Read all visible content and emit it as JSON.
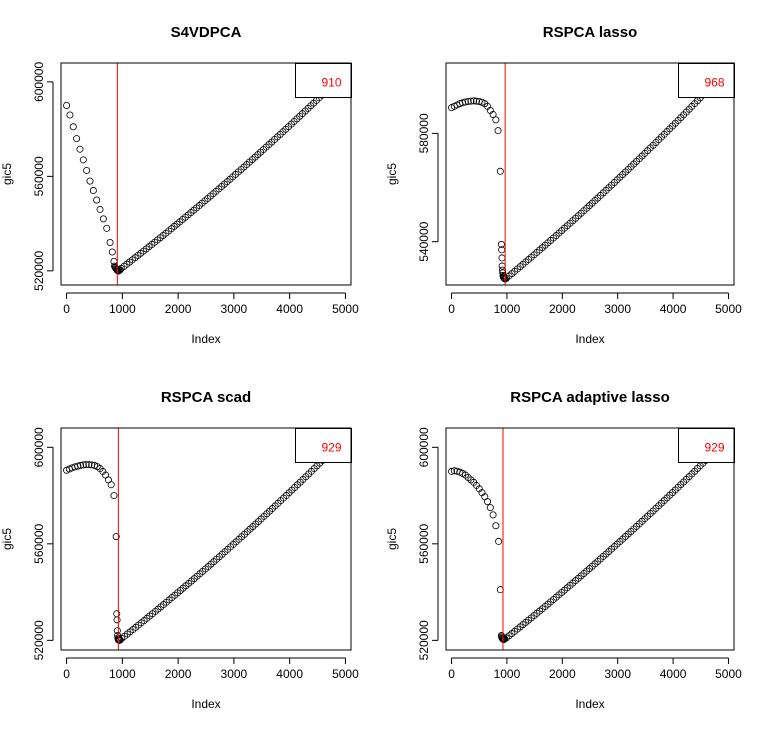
{
  "chart_data": [
    {
      "type": "scatter",
      "title": "S4VDPCA",
      "xlabel": "Index",
      "ylabel": "gic5",
      "xlim": [
        -100,
        5100
      ],
      "ylim": [
        514000,
        608000
      ],
      "xticks": [
        0,
        1000,
        2000,
        3000,
        4000,
        5000
      ],
      "yticks": [
        520000,
        560000,
        600000
      ],
      "vline": 910,
      "legend": {
        "text": "910",
        "position": "top-right",
        "color": "#ff0000"
      },
      "points": {
        "pre": [
          [
            0,
            590000
          ],
          [
            60,
            586000
          ],
          [
            120,
            581000
          ],
          [
            180,
            576000
          ],
          [
            240,
            571500
          ],
          [
            300,
            567000
          ],
          [
            360,
            562500
          ],
          [
            420,
            558000
          ],
          [
            480,
            554000
          ],
          [
            540,
            550000
          ],
          [
            600,
            546000
          ],
          [
            660,
            542000
          ],
          [
            720,
            538000
          ],
          [
            780,
            532000
          ],
          [
            820,
            528000
          ],
          [
            850,
            524000
          ]
        ],
        "cluster": [
          [
            860,
            522000
          ],
          [
            870,
            521500
          ],
          [
            880,
            521200
          ],
          [
            890,
            520800
          ],
          [
            900,
            520500
          ],
          [
            910,
            520200
          ],
          [
            920,
            520000
          ],
          [
            930,
            519900
          ],
          [
            940,
            520100
          ],
          [
            960,
            520400
          ]
        ],
        "post_start": [
          980,
          521000
        ],
        "post_end": [
          5000,
          604000
        ],
        "post_step": 50
      }
    },
    {
      "type": "scatter",
      "title": "RSPCA lasso",
      "xlabel": "Index",
      "ylabel": "gic5",
      "xlim": [
        -100,
        5100
      ],
      "ylim": [
        524000,
        606000
      ],
      "xticks": [
        0,
        1000,
        2000,
        3000,
        4000,
        5000
      ],
      "yticks": [
        540000,
        580000
      ],
      "vline": 968,
      "legend": {
        "text": "968",
        "position": "top-right",
        "color": "#ff0000"
      },
      "points": {
        "pre": [
          [
            0,
            589500
          ],
          [
            50,
            590000
          ],
          [
            100,
            590500
          ],
          [
            150,
            591000
          ],
          [
            200,
            591300
          ],
          [
            250,
            591600
          ],
          [
            300,
            591800
          ],
          [
            350,
            591900
          ],
          [
            400,
            592000
          ],
          [
            450,
            591900
          ],
          [
            500,
            591800
          ],
          [
            550,
            591500
          ],
          [
            600,
            591000
          ],
          [
            650,
            590000
          ],
          [
            700,
            588500
          ],
          [
            750,
            587000
          ],
          [
            800,
            585000
          ],
          [
            840,
            581000
          ],
          [
            880,
            566000
          ]
        ],
        "cluster": [
          [
            900,
            539000
          ],
          [
            905,
            537000
          ],
          [
            910,
            534000
          ],
          [
            915,
            531000
          ],
          [
            920,
            529500
          ],
          [
            925,
            528500
          ],
          [
            930,
            527500
          ],
          [
            935,
            527000
          ],
          [
            940,
            526800
          ],
          [
            950,
            526500
          ],
          [
            960,
            526300
          ],
          [
            970,
            526200
          ]
        ],
        "post_start": [
          990,
          526500
        ],
        "post_end": [
          5000,
          604000
        ],
        "post_step": 50
      }
    },
    {
      "type": "scatter",
      "title": "RSPCA scad",
      "xlabel": "Index",
      "ylabel": "gic5",
      "xlim": [
        -100,
        5100
      ],
      "ylim": [
        516000,
        608000
      ],
      "xticks": [
        0,
        1000,
        2000,
        3000,
        4000,
        5000
      ],
      "yticks": [
        520000,
        560000,
        600000
      ],
      "vline": 929,
      "legend": {
        "text": "929",
        "position": "top-right",
        "color": "#ff0000"
      },
      "points": {
        "pre": [
          [
            0,
            590500
          ],
          [
            50,
            591000
          ],
          [
            100,
            591500
          ],
          [
            150,
            591900
          ],
          [
            200,
            592200
          ],
          [
            250,
            592500
          ],
          [
            300,
            592700
          ],
          [
            350,
            592800
          ],
          [
            400,
            592800
          ],
          [
            450,
            592700
          ],
          [
            500,
            592500
          ],
          [
            550,
            592000
          ],
          [
            600,
            591200
          ],
          [
            650,
            590000
          ],
          [
            700,
            588500
          ],
          [
            750,
            586500
          ],
          [
            800,
            584500
          ],
          [
            850,
            580000
          ]
        ],
        "cluster": [
          [
            890,
            563000
          ],
          [
            900,
            531000
          ],
          [
            905,
            528500
          ],
          [
            910,
            524000
          ],
          [
            915,
            522000
          ],
          [
            920,
            521000
          ],
          [
            925,
            520500
          ],
          [
            930,
            520200
          ],
          [
            940,
            520100
          ],
          [
            950,
            520000
          ],
          [
            960,
            520200
          ]
        ],
        "post_start": [
          990,
          520800
        ],
        "post_end": [
          5000,
          604000
        ],
        "post_step": 50
      }
    },
    {
      "type": "scatter",
      "title": "RSPCA adaptive lasso",
      "xlabel": "Index",
      "ylabel": "gic5",
      "xlim": [
        -100,
        5100
      ],
      "ylim": [
        516000,
        608000
      ],
      "xticks": [
        0,
        1000,
        2000,
        3000,
        4000,
        5000
      ],
      "yticks": [
        520000,
        560000,
        600000
      ],
      "vline": 929,
      "legend": {
        "text": "929",
        "position": "top-right",
        "color": "#ff0000"
      },
      "points": {
        "pre": [
          [
            0,
            590000
          ],
          [
            50,
            590300
          ],
          [
            100,
            590100
          ],
          [
            150,
            589700
          ],
          [
            200,
            589200
          ],
          [
            250,
            588500
          ],
          [
            300,
            587500
          ],
          [
            350,
            586500
          ],
          [
            400,
            585500
          ],
          [
            450,
            584200
          ],
          [
            500,
            582800
          ],
          [
            550,
            581200
          ],
          [
            600,
            579500
          ],
          [
            650,
            577500
          ],
          [
            700,
            575000
          ],
          [
            750,
            572000
          ],
          [
            800,
            567500
          ],
          [
            850,
            561000
          ]
        ],
        "cluster": [
          [
            880,
            541000
          ],
          [
            900,
            522000
          ],
          [
            905,
            521500
          ],
          [
            910,
            521000
          ],
          [
            920,
            520800
          ],
          [
            930,
            520500
          ],
          [
            940,
            520300
          ],
          [
            950,
            520400
          ],
          [
            960,
            520600
          ]
        ],
        "post_start": [
          990,
          521000
        ],
        "post_end": [
          5000,
          604000
        ],
        "post_step": 50
      }
    }
  ]
}
